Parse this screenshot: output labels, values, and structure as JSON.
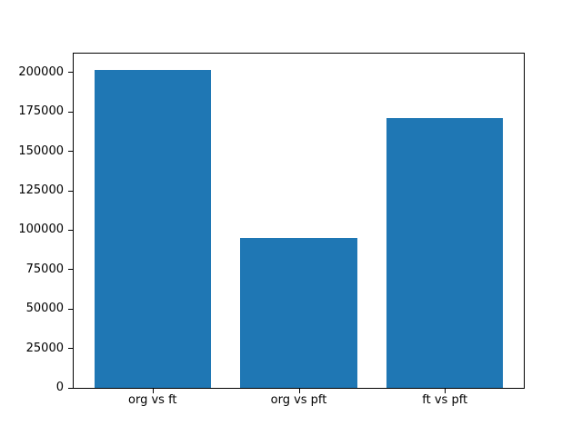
{
  "chart_data": {
    "type": "bar",
    "categories": [
      "org vs ft",
      "org vs pft",
      "ft vs pft"
    ],
    "values": [
      202000,
      95000,
      171000
    ],
    "title": "",
    "xlabel": "",
    "ylabel": "",
    "ylim": [
      0,
      212100
    ],
    "yticks": [
      0,
      25000,
      50000,
      75000,
      100000,
      125000,
      150000,
      175000,
      200000
    ],
    "bar_color": "#1f77b4",
    "background_color": "#ffffff",
    "axis_color": "#000000",
    "grid": false,
    "legend_position": "none"
  }
}
